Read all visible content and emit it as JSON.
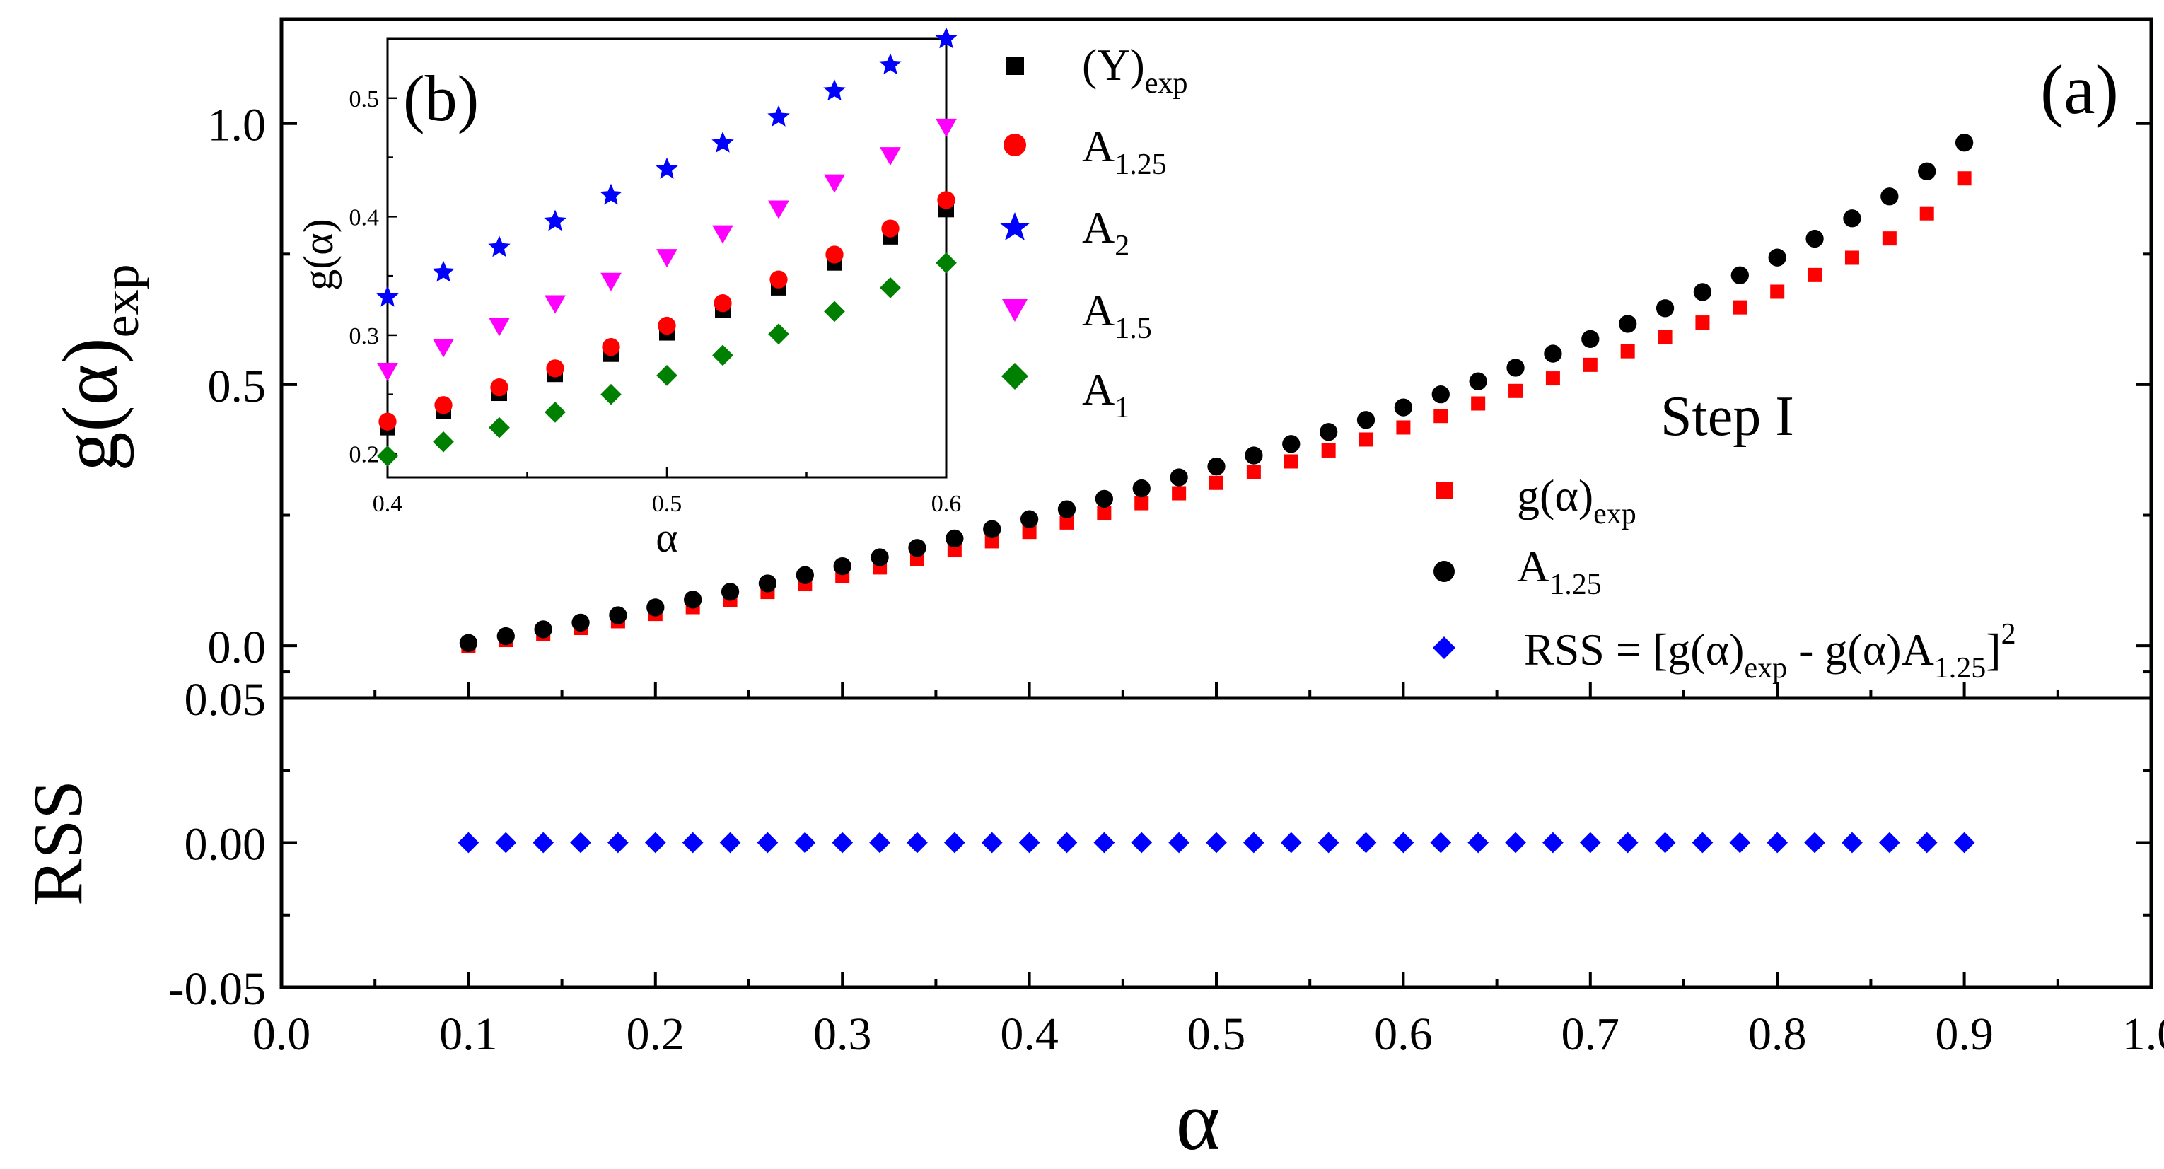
{
  "chart_data": [
    {
      "id": "main",
      "type": "scatter",
      "panel_label": "(a)",
      "annotation": "Step I",
      "xlabel": "α",
      "xlim": [
        0.0,
        1.0
      ],
      "xticks": [
        "0.0",
        "0.1",
        "0.2",
        "0.3",
        "0.4",
        "0.5",
        "0.6",
        "0.7",
        "0.8",
        "0.9",
        "1.0"
      ],
      "top_panel": {
        "ylabel_main": "g(α)",
        "ylabel_sub": "exp",
        "ylim": [
          -0.1,
          1.2
        ],
        "yticks": [
          "0.0",
          "0.5",
          "1.0"
        ]
      },
      "bottom_panel": {
        "ylabel": "RSS",
        "ylim": [
          -0.05,
          0.05
        ],
        "yticks": [
          "-0.05",
          "0.00",
          "0.05"
        ]
      },
      "x": [
        0.1,
        0.12,
        0.14,
        0.16,
        0.18,
        0.2,
        0.22,
        0.24,
        0.26,
        0.28,
        0.3,
        0.32,
        0.34,
        0.36,
        0.38,
        0.4,
        0.42,
        0.44,
        0.46,
        0.48,
        0.5,
        0.52,
        0.54,
        0.56,
        0.58,
        0.6,
        0.62,
        0.64,
        0.66,
        0.68,
        0.7,
        0.72,
        0.74,
        0.76,
        0.78,
        0.8,
        0.82,
        0.84,
        0.86,
        0.88,
        0.9
      ],
      "series": [
        {
          "name": "g(α)exp",
          "legend_main": "g(α)",
          "legend_sub": "exp",
          "marker": "square",
          "color": "#ff0000",
          "values": [
            0.0,
            0.011,
            0.023,
            0.034,
            0.047,
            0.061,
            0.074,
            0.088,
            0.103,
            0.118,
            0.134,
            0.15,
            0.166,
            0.183,
            0.2,
            0.218,
            0.236,
            0.254,
            0.273,
            0.292,
            0.312,
            0.332,
            0.353,
            0.374,
            0.395,
            0.418,
            0.44,
            0.464,
            0.488,
            0.512,
            0.538,
            0.564,
            0.591,
            0.619,
            0.648,
            0.678,
            0.71,
            0.743,
            0.78,
            0.828,
            0.895
          ]
        },
        {
          "name": "A1.25",
          "legend_main": "A",
          "legend_sub": "1.25",
          "marker": "circle",
          "color": "#000000",
          "values": [
            0.0,
            0.013,
            0.026,
            0.039,
            0.053,
            0.068,
            0.083,
            0.098,
            0.114,
            0.13,
            0.147,
            0.164,
            0.182,
            0.2,
            0.218,
            0.237,
            0.256,
            0.276,
            0.296,
            0.317,
            0.338,
            0.359,
            0.381,
            0.404,
            0.427,
            0.451,
            0.476,
            0.501,
            0.527,
            0.554,
            0.582,
            0.611,
            0.641,
            0.672,
            0.704,
            0.738,
            0.774,
            0.813,
            0.855,
            0.903,
            0.958
          ]
        },
        {
          "name": "RSS",
          "legend_html_main": "RSS = [g(α)",
          "legend_sub1": "exp",
          "legend_mid": " - g(α)A",
          "legend_sub2": "1.25",
          "legend_end": "]",
          "legend_sup": "2",
          "marker": "diamond",
          "color": "#0000ff",
          "panel": "bottom",
          "values": [
            0.0,
            0.0,
            0.0,
            0.0,
            0.0,
            0.0,
            0.0,
            0.0,
            0.0,
            0.0,
            0.0,
            0.0,
            0.0,
            0.0,
            0.0,
            0.0,
            0.0,
            0.0,
            0.0,
            0.0,
            0.0,
            0.0,
            0.0,
            0.0,
            0.0,
            0.0,
            0.0,
            0.0,
            0.0,
            0.0,
            0.0,
            0.0,
            0.0,
            0.0,
            0.0,
            0.0,
            0.0,
            0.0,
            0.0,
            0.0,
            0.0
          ]
        }
      ]
    },
    {
      "id": "inset",
      "type": "scatter",
      "panel_label": "(b)",
      "xlabel": "α",
      "ylabel": "g(α)",
      "xlim": [
        0.4,
        0.6
      ],
      "ylim": [
        0.18,
        0.55
      ],
      "xticks": [
        "0.4",
        "0.5",
        "0.6"
      ],
      "yticks": [
        "0.2",
        "0.3",
        "0.4",
        "0.5"
      ],
      "x": [
        0.4,
        0.42,
        0.44,
        0.46,
        0.48,
        0.5,
        0.52,
        0.54,
        0.56,
        0.58,
        0.6
      ],
      "series": [
        {
          "name": "(Y)exp",
          "legend_main": "(Y)",
          "legend_sub": "exp",
          "marker": "square",
          "color": "#000000",
          "values": [
            0.222,
            0.236,
            0.251,
            0.267,
            0.284,
            0.302,
            0.321,
            0.34,
            0.361,
            0.383,
            0.406
          ]
        },
        {
          "name": "A1.25",
          "legend_main": "A",
          "legend_sub": "1.25",
          "marker": "circle",
          "color": "#ff0000",
          "values": [
            0.227,
            0.241,
            0.256,
            0.272,
            0.29,
            0.308,
            0.327,
            0.347,
            0.368,
            0.39,
            0.414
          ]
        },
        {
          "name": "A2",
          "legend_main": "A",
          "legend_sub": "2",
          "marker": "star",
          "color": "#0000ff",
          "values": [
            0.332,
            0.353,
            0.374,
            0.396,
            0.418,
            0.44,
            0.462,
            0.484,
            0.506,
            0.528,
            0.55
          ]
        },
        {
          "name": "A1.5",
          "legend_main": "A",
          "legend_sub": "1.5",
          "marker": "triangle-down",
          "color": "#ff00ff",
          "values": [
            0.27,
            0.29,
            0.308,
            0.327,
            0.346,
            0.366,
            0.386,
            0.407,
            0.429,
            0.452,
            0.476
          ]
        },
        {
          "name": "A1",
          "legend_main": "A",
          "legend_sub": "1",
          "marker": "diamond",
          "color": "#008000",
          "values": [
            0.198,
            0.21,
            0.222,
            0.235,
            0.25,
            0.266,
            0.283,
            0.301,
            0.32,
            0.34,
            0.361
          ]
        }
      ]
    }
  ]
}
